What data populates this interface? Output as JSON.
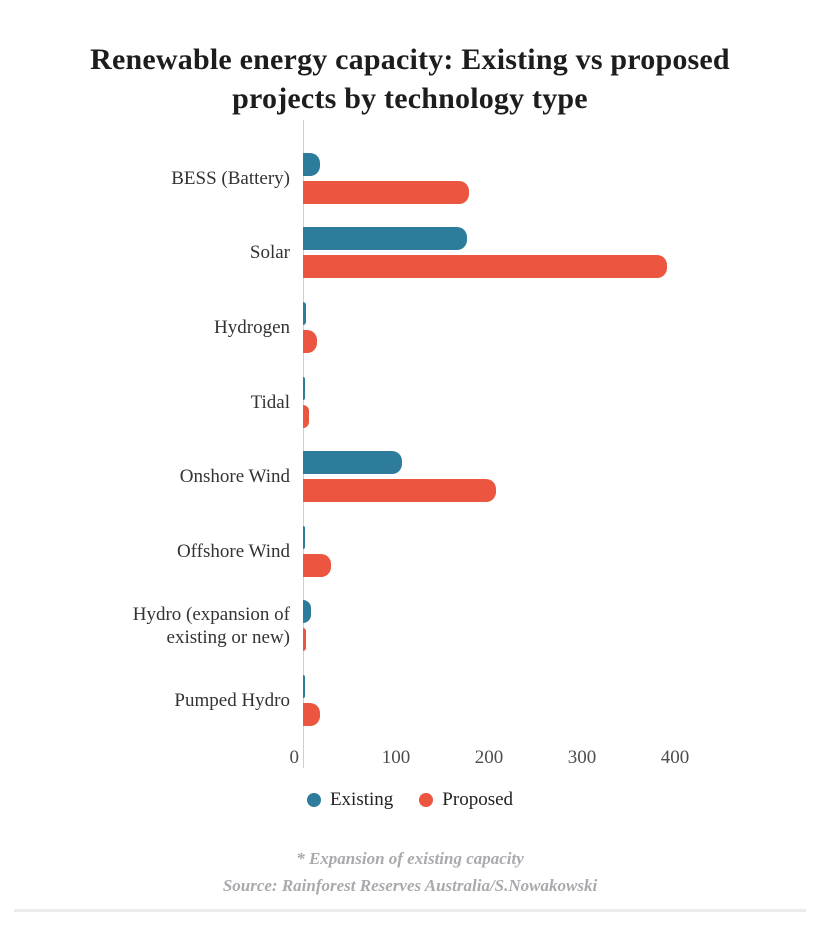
{
  "title_lines": [
    "Renewable energy capacity: Existing vs proposed",
    "projects by technology type"
  ],
  "chart_data": {
    "type": "bar",
    "orientation": "horizontal",
    "title": "Renewable energy capacity: Existing vs proposed projects by technology type",
    "categories": [
      "BESS (Battery)",
      "Solar",
      "Hydrogen",
      "Tidal",
      "Onshore Wind",
      "Offshore Wind",
      "Hydro (expansion of existing or new)",
      "Pumped Hydro"
    ],
    "series": [
      {
        "name": "Existing",
        "color": "#2d7c9c",
        "values": [
          18,
          176,
          3,
          2,
          106,
          2,
          9,
          2
        ]
      },
      {
        "name": "Proposed",
        "color": "#ec5540",
        "values": [
          178,
          391,
          15,
          6,
          208,
          30,
          3,
          18
        ]
      }
    ],
    "xlabel": "",
    "ylabel": "",
    "xlim": [
      0,
      400
    ],
    "xticks": [
      0,
      100,
      200,
      300,
      400
    ],
    "grid": false,
    "legend_position": "bottom-center"
  },
  "footer": {
    "footnote": "* Expansion of existing capacity",
    "source": "Source: Rainforest Reserves Australia/S.Nowakowski"
  },
  "colors": {
    "existing": "#2d7c9c",
    "proposed": "#ec5540",
    "axis_line": "#cfcfcf",
    "title_text": "#1d1d1d",
    "category_text": "#333333",
    "tick_text": "#4d4d4d",
    "footnote_text": "#a9a9ae",
    "bottom_rule": "#ececec"
  }
}
